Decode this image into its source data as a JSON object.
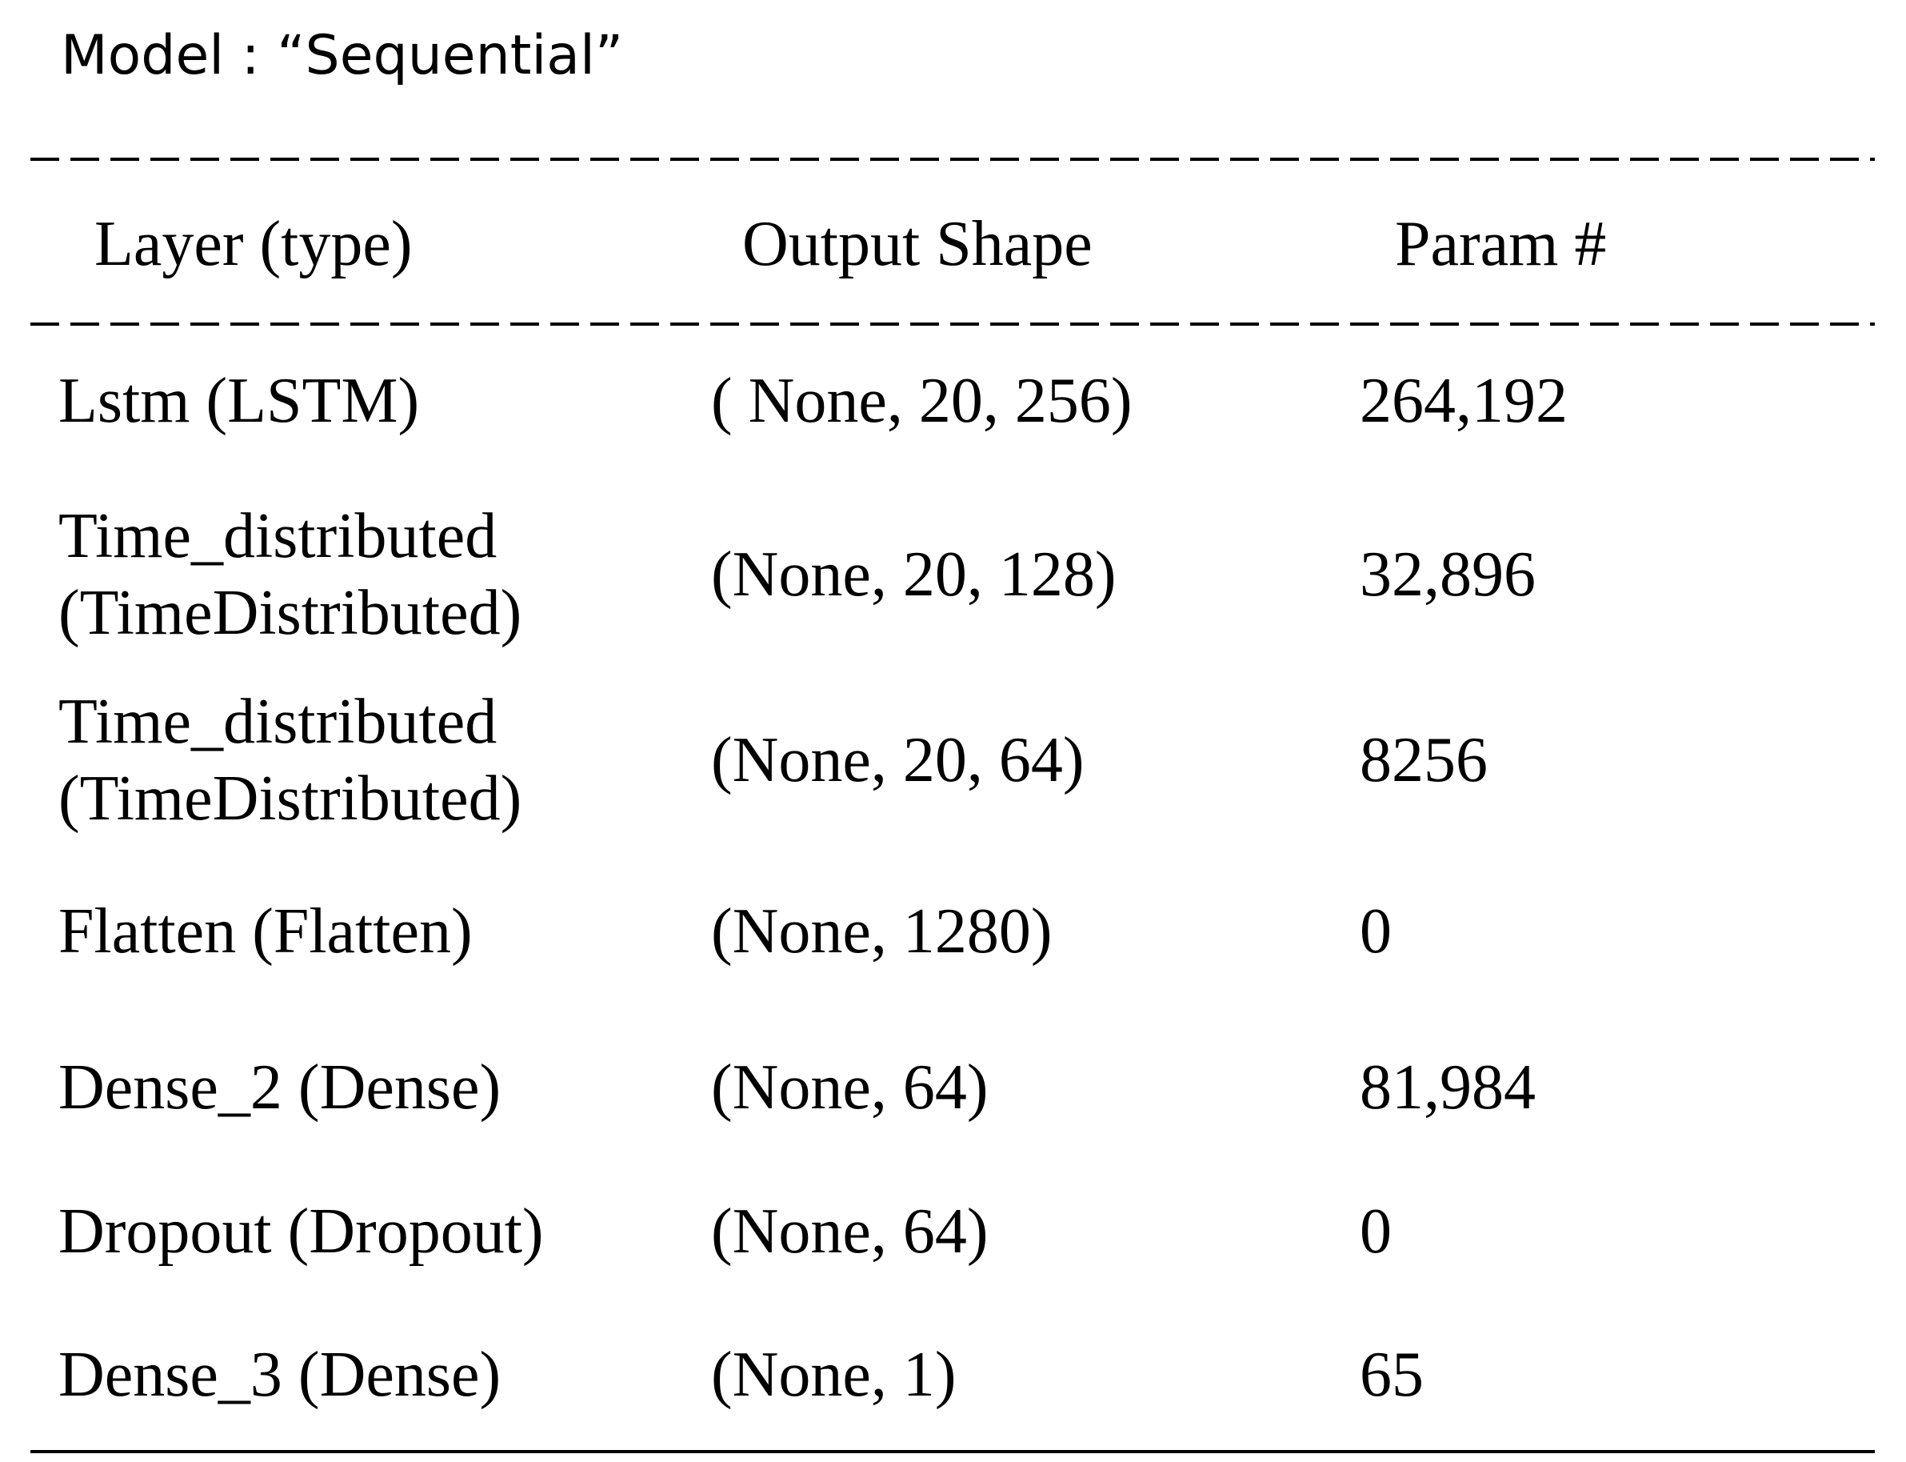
{
  "header": {
    "title": "Model : “Sequential”"
  },
  "table": {
    "columns": [
      "Layer (type)",
      "Output Shape",
      "Param #"
    ],
    "rows": [
      [
        [
          "Lstm (LSTM)"
        ],
        "( None, 20, 256)",
        "264,192"
      ],
      [
        [
          "Time_distributed",
          "(TimeDistributed)"
        ],
        "(None, 20, 128)",
        "32,896"
      ],
      [
        [
          "Time_distributed",
          "(TimeDistributed)"
        ],
        "(None, 20, 64)",
        "8256"
      ],
      [
        [
          "Flatten (Flatten)"
        ],
        "(None, 1280)",
        "0"
      ],
      [
        [
          "Dense_2 (Dense)"
        ],
        "(None, 64)",
        "81,984"
      ],
      [
        [
          "Dropout (Dropout)"
        ],
        "(None, 64)",
        "0"
      ],
      [
        [
          "Dense_3 (Dense)"
        ],
        "(None, 1)",
        "65"
      ]
    ]
  }
}
